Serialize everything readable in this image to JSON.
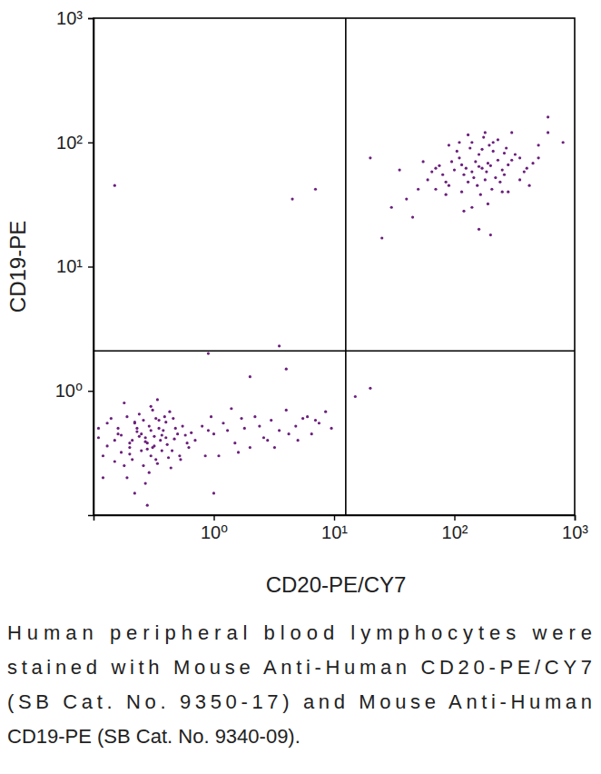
{
  "chart_data": {
    "type": "scatter",
    "x_label": "CD20-PE/CY7",
    "y_label": "CD19-PE",
    "caption": [
      "Human peripheral blood lymphocytes were",
      "stained with Mouse Anti-Human CD20-PE/CY7",
      "(SB Cat. No. 9350-17) and Mouse Anti-Human",
      "CD19-PE (SB Cat. No. 9340-09)."
    ],
    "log": true,
    "color": "#6b1f7c",
    "marker": "circle",
    "xlim": [
      0.1,
      1000
    ],
    "ylim": [
      0.1,
      1000
    ],
    "xticks": [
      {
        "value": 1,
        "label": "10⁰"
      },
      {
        "value": 10,
        "label": "10¹"
      },
      {
        "value": 100,
        "label": "10²"
      },
      {
        "value": 1000,
        "label": "10³"
      }
    ],
    "yticks": [
      {
        "value": 1,
        "label": "10⁰"
      },
      {
        "value": 10,
        "label": "10¹"
      },
      {
        "value": 100,
        "label": "10²"
      },
      {
        "value": 1000,
        "label": "10³"
      }
    ],
    "gates": {
      "x": 12.5,
      "y": 2.1
    },
    "x": [
      0.15,
      0.2,
      0.25,
      0.3,
      0.35,
      0.4,
      0.18,
      0.22,
      0.28,
      0.33,
      0.12,
      0.16,
      0.21,
      0.27,
      0.32,
      0.38,
      0.45,
      0.5,
      0.24,
      0.19,
      0.13,
      0.17,
      0.23,
      0.29,
      0.36,
      0.42,
      0.55,
      0.6,
      0.31,
      0.26,
      0.11,
      0.14,
      0.2,
      0.25,
      0.3,
      0.34,
      0.4,
      0.47,
      0.52,
      0.65,
      0.12,
      0.15,
      0.19,
      0.23,
      0.27,
      0.31,
      0.37,
      0.43,
      0.7,
      0.8,
      0.16,
      0.21,
      0.28,
      0.35,
      0.41,
      0.48,
      0.22,
      0.3,
      0.18,
      0.26,
      0.13,
      0.2,
      0.24,
      0.29,
      0.33,
      0.39,
      0.44,
      0.58,
      0.62,
      0.9,
      0.11,
      0.17,
      0.22,
      0.27,
      0.32,
      0.37,
      0.46,
      0.53,
      0.34,
      0.28,
      1.0,
      1.2,
      1.5,
      1.8,
      2.2,
      2.6,
      3.0,
      3.5,
      4.0,
      4.8,
      5.5,
      6.5,
      7.5,
      8.5,
      9.5,
      1.1,
      1.4,
      2.0,
      2.8,
      6.0,
      0.95,
      1.3,
      1.7,
      2.4,
      3.2,
      4.2,
      5.0,
      7.0,
      0.85,
      1.6,
      0.15,
      4.5,
      7.0,
      0.9,
      3.5,
      4.0,
      2.0,
      15,
      20,
      1.0,
      100,
      120,
      150,
      180,
      200,
      90,
      110,
      140,
      170,
      220,
      80,
      130,
      160,
      190,
      250,
      300,
      70,
      115,
      145,
      210,
      60,
      75,
      95,
      125,
      155,
      185,
      240,
      280,
      350,
      400,
      50,
      65,
      105,
      135,
      165,
      195,
      230,
      260,
      320,
      450,
      40,
      55,
      85,
      140,
      175,
      205,
      270,
      380,
      500,
      600,
      30,
      35,
      45,
      25,
      120,
      160,
      200,
      110,
      600,
      800,
      300,
      250,
      180,
      130,
      90,
      140,
      170,
      210,
      20,
      190,
      350,
      420,
      500,
      280,
      230,
      160,
      115,
      85,
      70,
      260
    ],
    "values": [
      0.4,
      0.35,
      0.45,
      0.3,
      0.5,
      0.42,
      0.25,
      0.55,
      0.38,
      0.6,
      0.3,
      0.5,
      0.28,
      0.42,
      0.36,
      0.48,
      0.33,
      0.45,
      0.65,
      0.2,
      0.55,
      0.32,
      0.47,
      0.22,
      0.4,
      0.29,
      0.52,
      0.38,
      0.7,
      0.58,
      0.42,
      0.6,
      0.38,
      0.33,
      0.48,
      0.26,
      0.56,
      0.41,
      0.3,
      0.46,
      0.2,
      0.27,
      0.62,
      0.5,
      0.18,
      0.35,
      0.44,
      0.68,
      0.4,
      0.52,
      0.45,
      0.4,
      0.34,
      0.58,
      0.37,
      0.5,
      0.15,
      0.75,
      0.8,
      0.25,
      0.36,
      0.31,
      0.43,
      0.52,
      0.28,
      0.62,
      0.24,
      0.44,
      0.35,
      0.48,
      0.5,
      0.44,
      0.56,
      0.39,
      0.43,
      0.33,
      0.6,
      0.28,
      0.85,
      0.12,
      0.45,
      0.55,
      0.38,
      0.5,
      0.62,
      0.42,
      0.58,
      0.48,
      0.7,
      0.52,
      0.6,
      0.45,
      0.55,
      0.68,
      0.5,
      0.3,
      0.72,
      0.35,
      0.4,
      0.62,
      0.62,
      0.48,
      0.6,
      0.52,
      0.35,
      0.45,
      0.4,
      0.58,
      0.3,
      0.32,
      45,
      35,
      42,
      2.0,
      2.3,
      1.5,
      1.3,
      0.9,
      1.05,
      0.15,
      60,
      55,
      70,
      50,
      65,
      45,
      75,
      58,
      62,
      52,
      55,
      48,
      80,
      68,
      60,
      72,
      62,
      40,
      52,
      85,
      50,
      65,
      70,
      62,
      45,
      58,
      48,
      66,
      75,
      62,
      42,
      58,
      85,
      90,
      38,
      95,
      72,
      55,
      80,
      68,
      35,
      70,
      38,
      100,
      110,
      42,
      90,
      58,
      95,
      120,
      30,
      60,
      25,
      17,
      28,
      20,
      18,
      100,
      160,
      100,
      120,
      40,
      120,
      115,
      95,
      30,
      88,
      100,
      75,
      32,
      50,
      45,
      75,
      40,
      105,
      64,
      66,
      48,
      42,
      82
    ]
  }
}
